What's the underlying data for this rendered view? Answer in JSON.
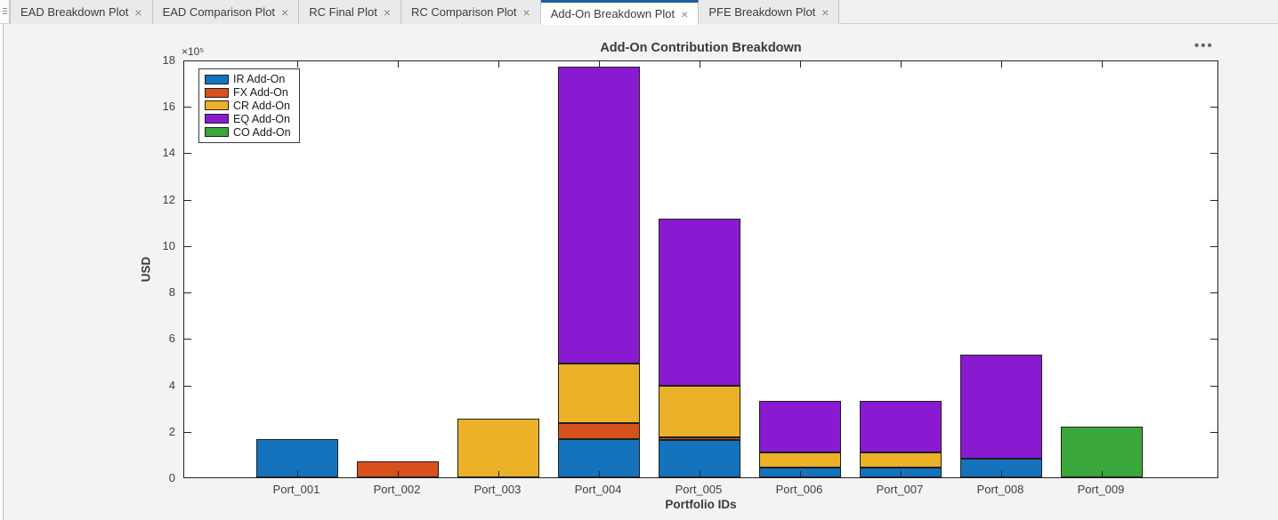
{
  "tabs": {
    "close_glyph": "×",
    "items": [
      {
        "label": "EAD Breakdown Plot",
        "active": false
      },
      {
        "label": "EAD Comparison Plot",
        "active": false
      },
      {
        "label": "RC Final Plot",
        "active": false
      },
      {
        "label": "RC Comparison Plot",
        "active": false
      },
      {
        "label": "Add-On Breakdown Plot",
        "active": true
      },
      {
        "label": "PFE Breakdown Plot",
        "active": false
      }
    ]
  },
  "figure": {
    "options_icon": "•••"
  },
  "chart_data": {
    "type": "bar",
    "stacked": true,
    "title": "Add-On Contribution Breakdown",
    "xlabel": "Portfolio IDs",
    "ylabel": "USD",
    "y_multiplier": "×10⁵",
    "ylim": [
      0,
      1800000
    ],
    "ytick_step": 200000,
    "ytick_labels": [
      "0",
      "2",
      "4",
      "6",
      "8",
      "10",
      "12",
      "14",
      "16",
      "18"
    ],
    "grid": false,
    "legend_position": "top-left-inside",
    "categories": [
      "Port_001",
      "Port_002",
      "Port_003",
      "Port_004",
      "Port_005",
      "Port_006",
      "Port_007",
      "Port_008",
      "Port_009"
    ],
    "series": [
      {
        "name": "IR Add-On",
        "color": "#1473bc",
        "values": [
          165000,
          0,
          0,
          165000,
          160000,
          43000,
          43000,
          80000,
          0
        ]
      },
      {
        "name": "FX Add-On",
        "color": "#d6511b",
        "values": [
          0,
          70000,
          0,
          70000,
          13000,
          0,
          0,
          0,
          0
        ]
      },
      {
        "name": "CR Add-On",
        "color": "#ebb229",
        "values": [
          0,
          0,
          253000,
          255000,
          222000,
          65000,
          65000,
          0,
          0
        ]
      },
      {
        "name": "EQ Add-On",
        "color": "#8a1ad1",
        "values": [
          0,
          0,
          0,
          1280000,
          720000,
          220000,
          220000,
          450000,
          0
        ]
      },
      {
        "name": "CO Add-On",
        "color": "#3ba63a",
        "values": [
          0,
          0,
          0,
          0,
          0,
          0,
          0,
          0,
          218000
        ]
      }
    ]
  }
}
